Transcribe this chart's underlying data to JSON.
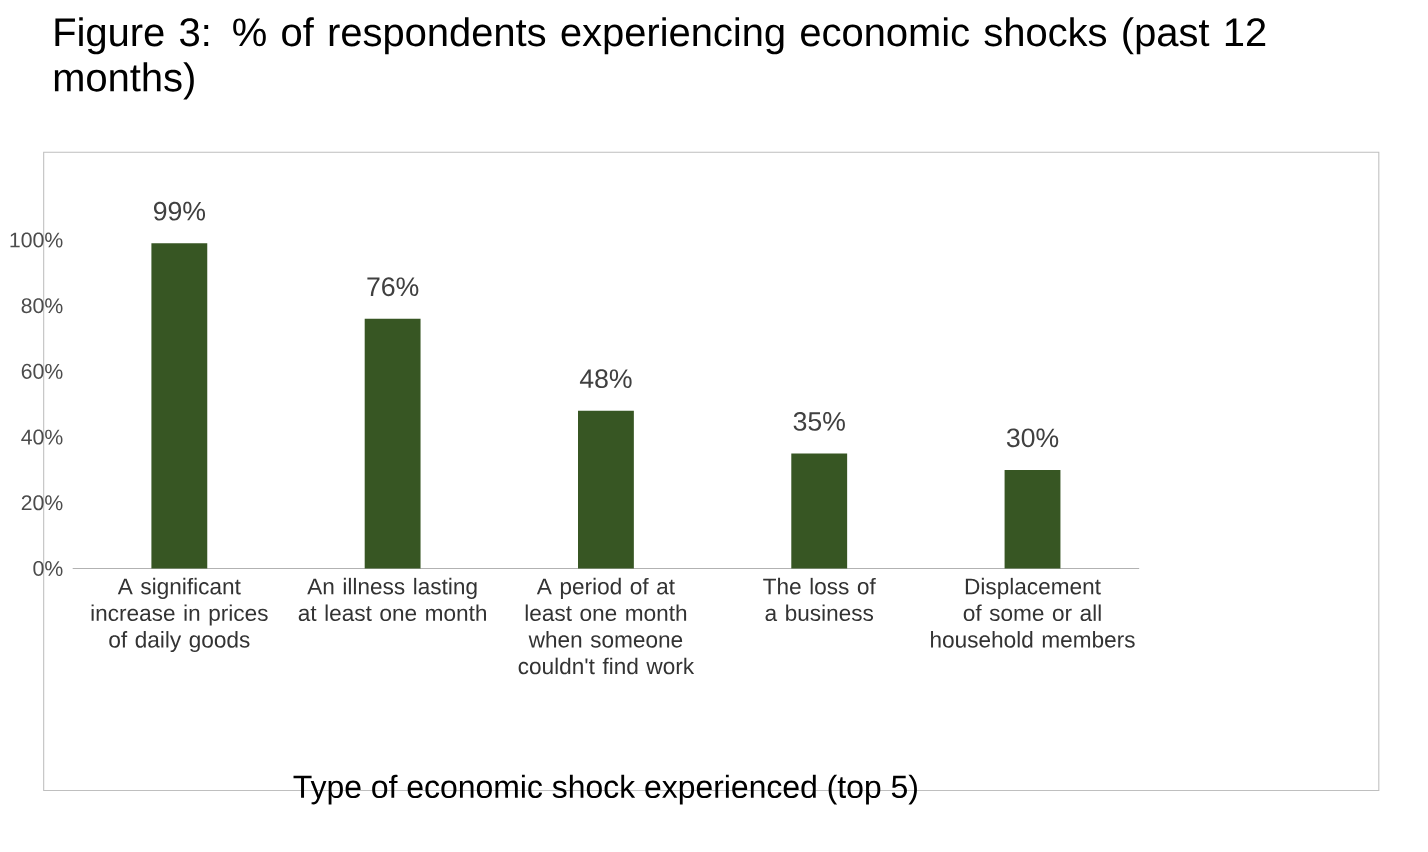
{
  "chart_data": {
    "type": "bar",
    "title": "Figure 3: % of respondents experiencing economic shocks (past 12 months)",
    "xlabel": "Type of economic shock experienced (top 5)",
    "categories": [
      "A significant increase in prices of daily goods",
      "An illness lasting at least one month",
      "A period of at least one month when someone couldn't find work",
      "The loss of a business",
      "Displacement of some or all household members"
    ],
    "values": [
      99,
      76,
      48,
      35,
      30
    ],
    "value_labels": [
      "99%",
      "76%",
      "48%",
      "35%",
      "30%"
    ],
    "color": "#375623",
    "ylim": [
      0,
      100
    ],
    "yticks": [
      {
        "value": 0,
        "label": "0%"
      },
      {
        "value": 20,
        "label": "20%"
      },
      {
        "value": 40,
        "label": "40%"
      },
      {
        "value": 60,
        "label": "60%"
      },
      {
        "value": 80,
        "label": "80%"
      },
      {
        "value": 100,
        "label": "100%"
      }
    ],
    "legend": false
  }
}
